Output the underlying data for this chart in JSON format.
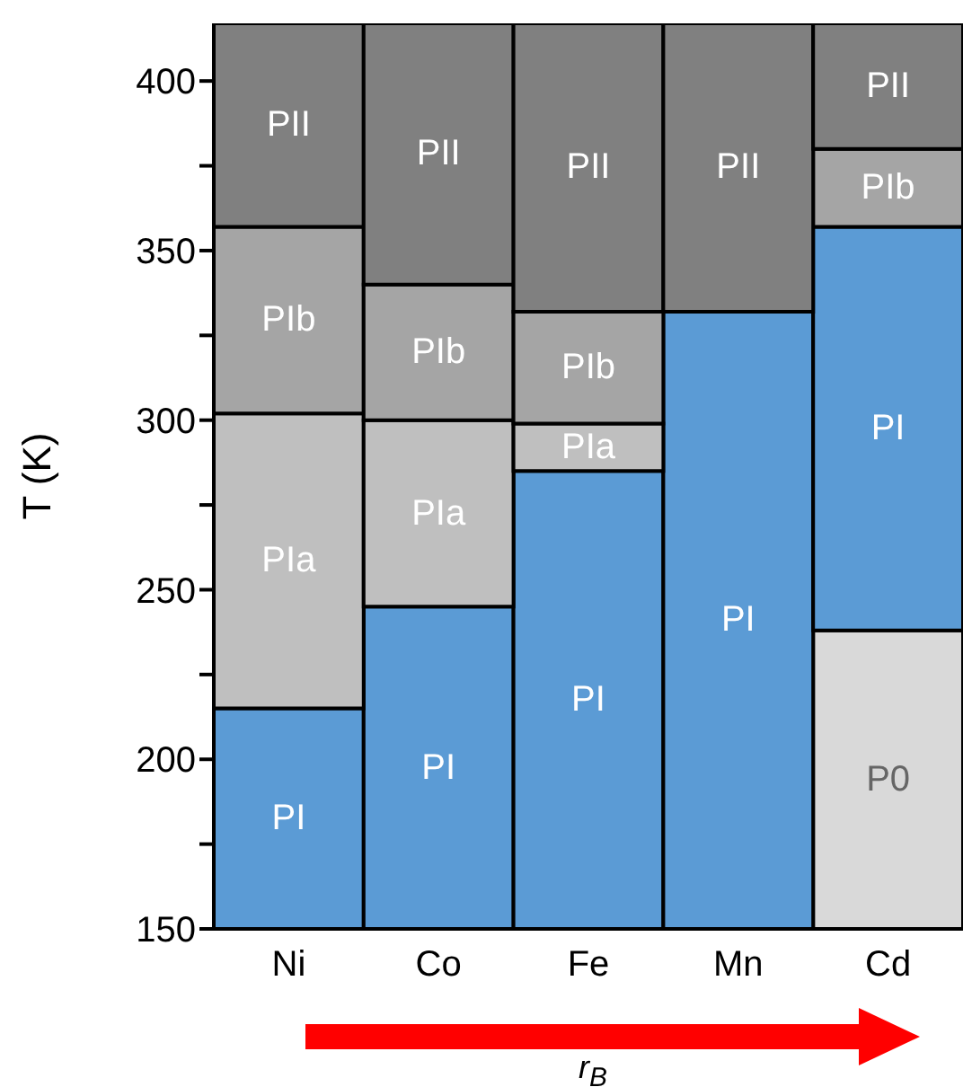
{
  "chart_data": {
    "type": "bar",
    "ylabel": "T (K)",
    "xlabel": "r$_{B}$",
    "categories": [
      "Ni",
      "Co",
      "Fe",
      "Mn",
      "Cd"
    ],
    "series": [
      {
        "name": "P0",
        "color": "#d9d9d9",
        "base": [
          null,
          null,
          null,
          null,
          150
        ],
        "values": [
          null,
          null,
          null,
          null,
          88
        ]
      },
      {
        "name": "PI",
        "color": "#5b9bd5",
        "base": [
          150,
          150,
          150,
          150,
          238
        ],
        "values": [
          65,
          95,
          135,
          182,
          119
        ]
      },
      {
        "name": "PIa",
        "color": "#bfbfbf",
        "base": [
          215,
          245,
          285,
          null,
          null
        ],
        "values": [
          87,
          55,
          14,
          null,
          null
        ]
      },
      {
        "name": "PIb",
        "color": "#a5a5a5",
        "base": [
          302,
          300,
          299,
          null,
          357
        ],
        "values": [
          55,
          40,
          33,
          null,
          23
        ]
      },
      {
        "name": "PII",
        "color": "#808080",
        "base": [
          357,
          340,
          332,
          332,
          380
        ],
        "values": [
          60,
          77,
          85,
          85,
          37
        ]
      }
    ],
    "ylim": [
      150,
      417
    ],
    "yticks": [
      150,
      {
        "value": 175,
        "label": null
      },
      200,
      {
        "value": 225,
        "label": null
      },
      250,
      {
        "value": 275,
        "label": null
      },
      300,
      {
        "value": 325,
        "label": null
      },
      350,
      {
        "value": 375,
        "label": null
      },
      400
    ]
  }
}
